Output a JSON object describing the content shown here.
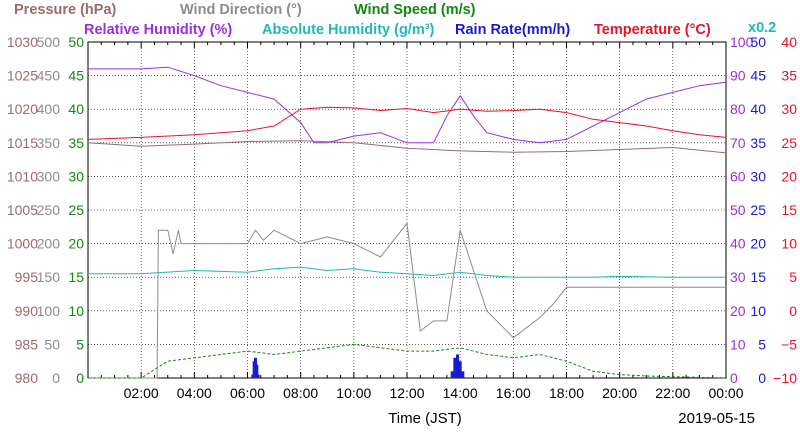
{
  "chart_data": {
    "type": "line",
    "xlabel": "Time (JST)",
    "date": "2019-05-15",
    "x_ticks": [
      "02:00",
      "04:00",
      "06:00",
      "08:00",
      "10:00",
      "12:00",
      "14:00",
      "16:00",
      "18:00",
      "20:00",
      "22:00",
      "00:00"
    ],
    "xlim_hours": [
      0,
      24
    ],
    "grid": true,
    "legend": [
      {
        "key": "pressure",
        "label": "Pressure (hPa)",
        "color": "#9b6b6b"
      },
      {
        "key": "wind_dir",
        "label": "Wind Direction (°)",
        "color": "#8c8c8c"
      },
      {
        "key": "wind_speed",
        "label": "Wind Speed (m/s)",
        "color": "#118811"
      },
      {
        "key": "rh",
        "label": "Relative Humidity (%)",
        "color": "#9a2fe0"
      },
      {
        "key": "ah",
        "label": "Absolute Humidity (g/m³)",
        "color": "#22b8b8"
      },
      {
        "key": "rain",
        "label": "Rain Rate(mm/h)",
        "color": "#1a1ad0"
      },
      {
        "key": "temp",
        "label": "Temperature (°C)",
        "color": "#e8132a"
      },
      {
        "key": "rain_scale",
        "label": "x0.2",
        "color": "#22b8b8"
      }
    ],
    "axes": {
      "pressure": {
        "ticks": [
          "1030",
          "1025",
          "1020",
          "1015",
          "1010",
          "1005",
          "1000",
          "995",
          "990",
          "985",
          "980"
        ],
        "ylim": [
          980,
          1030
        ],
        "color": "#9b6b6b"
      },
      "wind_dir": {
        "ticks": [
          "500",
          "450",
          "400",
          "350",
          "300",
          "250",
          "200",
          "150",
          "100",
          "50",
          "0"
        ],
        "ylim": [
          0,
          500
        ],
        "color": "#8c8c8c"
      },
      "wind_speed": {
        "ticks": [
          "50",
          "45",
          "40",
          "35",
          "30",
          "25",
          "20",
          "15",
          "10",
          "5",
          "0"
        ],
        "ylim": [
          0,
          50
        ],
        "color": "#118811"
      },
      "rh": {
        "ticks": [
          "100",
          "90",
          "80",
          "70",
          "60",
          "50",
          "40",
          "30",
          "20",
          "10",
          "0"
        ],
        "ylim": [
          0,
          100
        ],
        "color": "#9a2fe0"
      },
      "rain": {
        "ticks": [
          "50",
          "45",
          "40",
          "35",
          "30",
          "25",
          "20",
          "15",
          "10",
          "5",
          "0"
        ],
        "ylim": [
          0,
          50
        ],
        "color": "#1a1ad0"
      },
      "temp": {
        "ticks": [
          "40",
          "35",
          "30",
          "25",
          "20",
          "15",
          "10",
          "5",
          "0",
          "−5",
          "−10"
        ],
        "ylim": [
          -10,
          40
        ],
        "color": "#e8132a"
      }
    },
    "series": [
      {
        "key": "rh",
        "x": [
          0,
          2,
          3,
          4,
          5,
          6,
          7,
          8,
          8.5,
          9,
          9.5,
          10,
          11,
          12,
          13,
          13.5,
          14,
          14.5,
          15,
          16,
          17,
          18,
          19,
          20,
          21,
          22,
          23,
          24
        ],
        "values": [
          92,
          92,
          92.5,
          90,
          87,
          85,
          83,
          76,
          70,
          70,
          71,
          72,
          73,
          70,
          70,
          78,
          84,
          78,
          73,
          71,
          70,
          71,
          75,
          79,
          83,
          85,
          87,
          88
        ]
      },
      {
        "key": "pressure",
        "x": [
          0,
          2,
          4,
          6,
          8,
          10,
          12,
          14,
          16,
          18,
          20,
          22,
          24
        ],
        "values": [
          1015,
          1014.5,
          1014.8,
          1015.2,
          1015.3,
          1015,
          1014.2,
          1013.8,
          1013.6,
          1013.7,
          1014,
          1014.3,
          1013.5
        ]
      },
      {
        "key": "ah",
        "x": [
          0,
          2,
          4,
          6,
          7,
          8,
          9,
          10,
          11,
          12,
          13,
          14,
          15,
          16,
          17,
          18,
          19,
          20,
          22,
          24
        ],
        "values": [
          6.2,
          6.2,
          6.4,
          6.3,
          6.5,
          6.6,
          6.4,
          6.5,
          6.3,
          6.2,
          6.1,
          6.3,
          6.1,
          6,
          6,
          6,
          6,
          6.05,
          6,
          6
        ],
        "scale": "rh",
        "multiplier": 0.2
      },
      {
        "key": "temp",
        "x": [
          0,
          2,
          4,
          6,
          7,
          8,
          9,
          10,
          11,
          12,
          13,
          14,
          15,
          16,
          17,
          18,
          19,
          20,
          21,
          22,
          23,
          24
        ],
        "values": [
          25.5,
          25.8,
          26.2,
          26.8,
          27.5,
          30,
          30.3,
          30.2,
          29.8,
          30.1,
          29.5,
          30,
          29.7,
          29.8,
          30,
          29.5,
          28.5,
          28,
          27.5,
          26.8,
          26.2,
          25.8
        ]
      },
      {
        "key": "wind_dir",
        "x": [
          0,
          2.6,
          2.65,
          3,
          3.2,
          3.4,
          3.5,
          4,
          6,
          6.3,
          6.6,
          7,
          8,
          9,
          10,
          11,
          12,
          12.5,
          13,
          13.5,
          14,
          15,
          16,
          17,
          17.5,
          18,
          20,
          22,
          24
        ],
        "values": [
          0,
          0,
          220,
          220,
          185,
          220,
          200,
          200,
          200,
          220,
          205,
          220,
          200,
          210,
          200,
          180,
          230,
          70,
          85,
          85,
          220,
          100,
          60,
          90,
          110,
          135,
          135,
          135,
          135
        ]
      },
      {
        "key": "wind_speed",
        "x": [
          0,
          2,
          3,
          4,
          5,
          6,
          7,
          8,
          9,
          10,
          11,
          12,
          13,
          14,
          15,
          16,
          17,
          18,
          19,
          20,
          21,
          22,
          24
        ],
        "values": [
          0,
          0,
          2.5,
          3,
          3.5,
          4,
          3.5,
          4,
          4.5,
          5,
          4.5,
          4,
          4,
          4.5,
          3.5,
          3,
          3.5,
          2.5,
          1,
          0.5,
          0.3,
          0.2,
          0
        ]
      },
      {
        "key": "rain",
        "x": [
          6.2,
          6.25,
          6.3,
          6.35,
          6.4,
          13.7,
          13.8,
          13.9,
          14.0,
          14.1
        ],
        "values": [
          0.5,
          2.5,
          3,
          2,
          0.5,
          1,
          3,
          3.5,
          2.5,
          1
        ],
        "type": "bar"
      }
    ]
  }
}
